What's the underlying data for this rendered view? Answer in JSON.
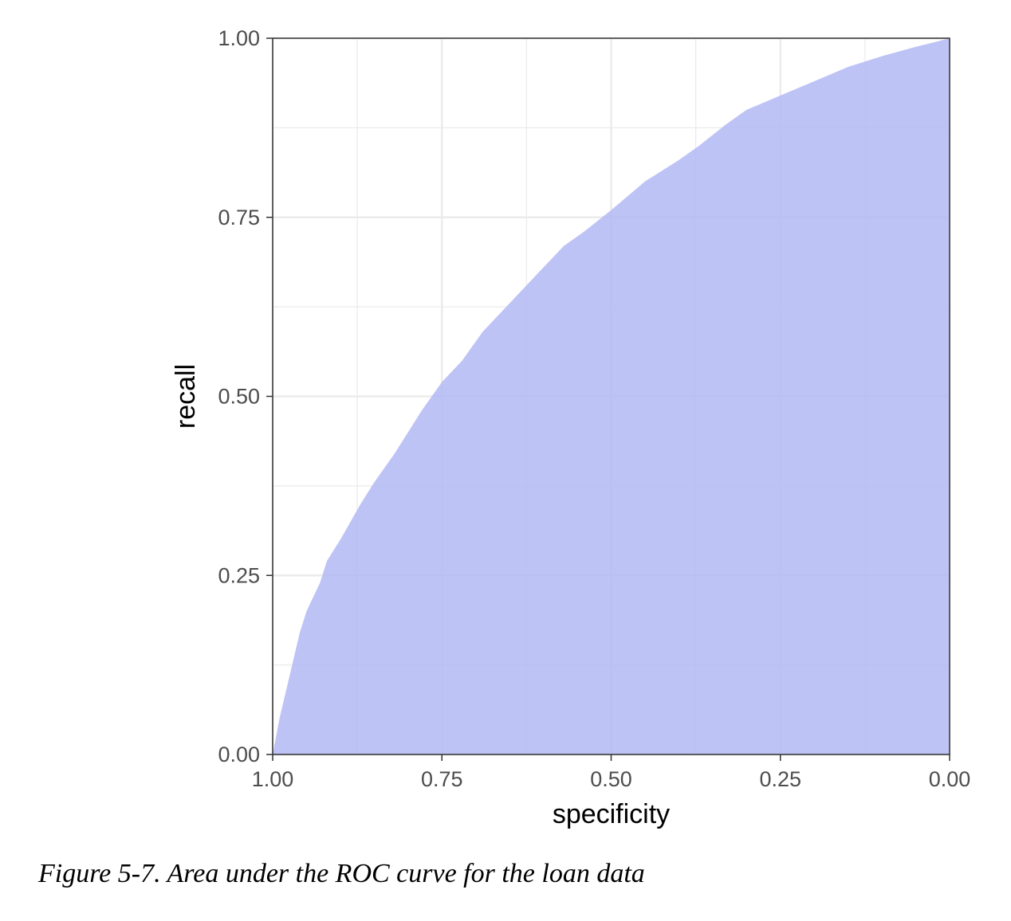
{
  "chart_data": {
    "type": "area",
    "title": "",
    "xlabel": "specificity",
    "ylabel": "recall",
    "x_reversed": true,
    "xlim": [
      1.0,
      0.0
    ],
    "ylim": [
      0.0,
      1.0
    ],
    "x_ticks": [
      "1.00",
      "0.75",
      "0.50",
      "0.25",
      "0.00"
    ],
    "y_ticks": [
      "0.00",
      "0.25",
      "0.50",
      "0.75",
      "1.00"
    ],
    "grid": true,
    "series": [
      {
        "x": [
          1.0,
          0.99,
          0.98,
          0.97,
          0.96,
          0.95,
          0.93,
          0.92,
          0.9,
          0.87,
          0.85,
          0.82,
          0.8,
          0.78,
          0.75,
          0.72,
          0.69,
          0.66,
          0.63,
          0.6,
          0.57,
          0.54,
          0.5,
          0.45,
          0.4,
          0.37,
          0.33,
          0.3,
          0.25,
          0.2,
          0.15,
          0.1,
          0.05,
          0.02,
          0.0
        ],
        "y": [
          0.0,
          0.05,
          0.09,
          0.13,
          0.17,
          0.2,
          0.24,
          0.27,
          0.3,
          0.35,
          0.38,
          0.42,
          0.45,
          0.48,
          0.52,
          0.55,
          0.59,
          0.62,
          0.65,
          0.68,
          0.71,
          0.73,
          0.76,
          0.8,
          0.83,
          0.85,
          0.88,
          0.9,
          0.92,
          0.94,
          0.96,
          0.975,
          0.988,
          0.995,
          1.0
        ]
      }
    ],
    "fill_color": "#b3b8f5",
    "panel_border_color": "#333333",
    "grid_color": "#ebebeb"
  },
  "caption": "Figure 5-7. Area under the ROC curve for the loan data"
}
